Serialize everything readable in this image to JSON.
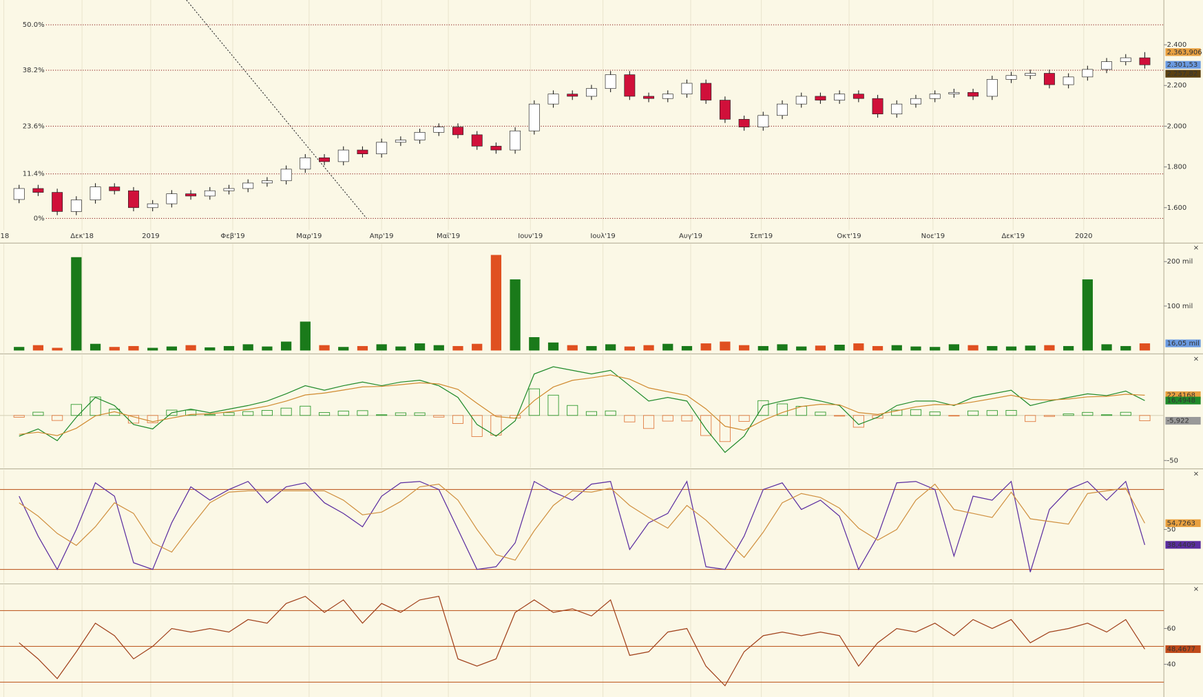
{
  "close_icon": "×",
  "chart_data": [
    {
      "type": "candlestick",
      "x": [
        1,
        2,
        3,
        4,
        5,
        6,
        7,
        8,
        9,
        10,
        11,
        12,
        13,
        14,
        15,
        16,
        17,
        18,
        19,
        20,
        21,
        22,
        23,
        24,
        25,
        26,
        27,
        28,
        29,
        30,
        31,
        32,
        33,
        34,
        35,
        36,
        37,
        38,
        39,
        40,
        41,
        42,
        43,
        44,
        45,
        46,
        47,
        48,
        49,
        50,
        51,
        52,
        53,
        54,
        55,
        56,
        57,
        58,
        59,
        60
      ],
      "open": [
        1640,
        1694,
        1675,
        1581,
        1638,
        1702,
        1683,
        1600,
        1619,
        1668,
        1657,
        1683,
        1694,
        1721,
        1732,
        1789,
        1845,
        1826,
        1883,
        1864,
        1921,
        1932,
        1970,
        1996,
        1958,
        1902,
        1883,
        1977,
        2109,
        2158,
        2147,
        2185,
        2253,
        2147,
        2136,
        2158,
        2211,
        2128,
        2034,
        1996,
        2053,
        2109,
        2147,
        2128,
        2158,
        2136,
        2060,
        2109,
        2136,
        2158,
        2166,
        2147,
        2230,
        2249,
        2260,
        2204,
        2242,
        2279,
        2317,
        2336
      ],
      "high": [
        1712,
        1712,
        1693,
        1656,
        1720,
        1720,
        1701,
        1637,
        1686,
        1686,
        1701,
        1712,
        1739,
        1750,
        1807,
        1863,
        1863,
        1901,
        1901,
        1939,
        1950,
        1988,
        2014,
        2014,
        1976,
        1920,
        1995,
        2127,
        2176,
        2176,
        2203,
        2271,
        2271,
        2165,
        2176,
        2229,
        2229,
        2146,
        2052,
        2071,
        2127,
        2165,
        2165,
        2176,
        2176,
        2154,
        2127,
        2154,
        2176,
        2184,
        2184,
        2248,
        2267,
        2278,
        2278,
        2260,
        2297,
        2335,
        2354,
        2364
      ],
      "low": [
        1622,
        1657,
        1563,
        1563,
        1620,
        1665,
        1582,
        1582,
        1601,
        1639,
        1639,
        1665,
        1676,
        1703,
        1714,
        1771,
        1808,
        1808,
        1846,
        1846,
        1903,
        1914,
        1952,
        1940,
        1884,
        1865,
        1865,
        1959,
        2091,
        2129,
        2129,
        2167,
        2129,
        2118,
        2118,
        2140,
        2110,
        2016,
        1978,
        1978,
        2035,
        2091,
        2110,
        2110,
        2118,
        2042,
        2042,
        2091,
        2118,
        2140,
        2129,
        2129,
        2212,
        2231,
        2186,
        2186,
        2224,
        2261,
        2299,
        2283
      ],
      "close": [
        1694,
        1675,
        1581,
        1638,
        1702,
        1683,
        1600,
        1619,
        1668,
        1657,
        1683,
        1694,
        1721,
        1732,
        1789,
        1845,
        1826,
        1883,
        1864,
        1921,
        1932,
        1970,
        1996,
        1958,
        1902,
        1883,
        1977,
        2109,
        2158,
        2147,
        2185,
        2253,
        2147,
        2136,
        2158,
        2211,
        2128,
        2034,
        1996,
        2053,
        2109,
        2147,
        2128,
        2158,
        2136,
        2060,
        2109,
        2136,
        2158,
        2166,
        2147,
        2230,
        2249,
        2260,
        2204,
        2242,
        2279,
        2317,
        2336,
        2301.53
      ],
      "up_color": "#ffffff",
      "down_color": "#d0103a",
      "xlim": [
        0,
        61
      ],
      "xticks": [
        {
          "value": 0.2,
          "label": "'18"
        },
        {
          "value": 4.3,
          "label": "Δεκ'18"
        },
        {
          "value": 7.9,
          "label": "2019"
        },
        {
          "value": 12.2,
          "label": "Φεβ'19"
        },
        {
          "value": 16.2,
          "label": "Μαρ'19"
        },
        {
          "value": 20.0,
          "label": "Απρ'19"
        },
        {
          "value": 23.5,
          "label": "Μαϊ'19"
        },
        {
          "value": 27.8,
          "label": "Ιουν'19"
        },
        {
          "value": 31.6,
          "label": "Ιουλ'19"
        },
        {
          "value": 36.2,
          "label": "Αυγ'19"
        },
        {
          "value": 39.9,
          "label": "Σεπ'19"
        },
        {
          "value": 44.5,
          "label": "Οκτ'19"
        },
        {
          "value": 48.9,
          "label": "Νοε'19"
        },
        {
          "value": 53.1,
          "label": "Δεκ'19"
        },
        {
          "value": 56.8,
          "label": "2020"
        }
      ],
      "ylim": [
        1490,
        2620
      ],
      "yticks": [
        {
          "value": 1600,
          "label": "1.600"
        },
        {
          "value": 1800,
          "label": "1.800"
        },
        {
          "value": 2000,
          "label": "2.000"
        },
        {
          "value": 2200,
          "label": "2.200"
        },
        {
          "value": 2400,
          "label": "2.400"
        }
      ],
      "fib_levels": [
        {
          "value": 2498,
          "label": "50.0%"
        },
        {
          "value": 2275,
          "label": "38.2%"
        },
        {
          "value": 2000,
          "label": "23.6%"
        },
        {
          "value": 1766,
          "label": "11.4%"
        },
        {
          "value": 1547,
          "label": "0%"
        }
      ],
      "last_labels": [
        {
          "value": 2363.906,
          "label": "2.363,906",
          "color": "#e8a040"
        },
        {
          "value": 2301.53,
          "label": "2.301,53",
          "color": "#6a9ae0"
        },
        {
          "value": 2257.82,
          "label": "2.257,82",
          "color": "#5a4010"
        }
      ]
    },
    {
      "type": "bar",
      "values": [
        8,
        12,
        6,
        210,
        15,
        8,
        10,
        6,
        9,
        12,
        7,
        10,
        14,
        9,
        20,
        65,
        12,
        8,
        10,
        14,
        9,
        16,
        12,
        10,
        15,
        215,
        160,
        30,
        18,
        12,
        10,
        14,
        9,
        12,
        15,
        10,
        16,
        20,
        12,
        10,
        14,
        9,
        11,
        13,
        16,
        10,
        12,
        9,
        8,
        14,
        12,
        10,
        9,
        11,
        12,
        10,
        160,
        14,
        10,
        16.05
      ],
      "up_color": "#1a7a1a",
      "down_color": "#e05020",
      "ylim": [
        -5,
        240
      ],
      "yticks": [
        {
          "value": 100,
          "label": "100 mil"
        },
        {
          "value": 200,
          "label": "200 mil"
        }
      ],
      "last_labels": [
        {
          "value": 16.05,
          "label": "16,05 mil",
          "color": "#6a9ae0"
        }
      ]
    },
    {
      "type": "macd",
      "series": [
        {
          "color": "#1f8a2a",
          "values": [
            -23,
            -15,
            -28,
            -2,
            20,
            11,
            -10,
            -15,
            3,
            7,
            3,
            7,
            11,
            16,
            24,
            33,
            28,
            33,
            37,
            33,
            37,
            39,
            33,
            20,
            -10,
            -23,
            -6,
            46,
            54,
            50,
            46,
            50,
            33,
            16,
            20,
            16,
            -15,
            -41,
            -23,
            11,
            16,
            20,
            16,
            11,
            -10,
            -2,
            11,
            16,
            16,
            11,
            20,
            24,
            28,
            11,
            16,
            20,
            24,
            22,
            27,
            16.4948
          ]
        },
        {
          "color": "#d08a30",
          "values": [
            -21,
            -18.6,
            -22.4,
            -14.2,
            -0.5,
            4.1,
            -1.5,
            -6.9,
            -2.9,
            1.1,
            1.9,
            3.9,
            6.7,
            10.4,
            15.9,
            22.7,
            24.8,
            28.1,
            31.7,
            32.2,
            34.1,
            36.1,
            34.9,
            28.9,
            13.4,
            -1.2,
            -3.1,
            16.5,
            31.5,
            38.9,
            41.7,
            45,
            40.2,
            30.5,
            26.3,
            22.2,
            7.3,
            -12,
            -16.4,
            -5.4,
            3.2,
            9.9,
            12.3,
            11.8,
            3.1,
            1.1,
            5.1,
            9.5,
            12.1,
            11.7,
            15,
            18.6,
            22.4,
            17.8,
            17.1,
            18.3,
            20.6,
            21.2,
            23.5,
            22.4168
          ]
        }
      ],
      "histogram": {
        "up_color": "#2e9a2e",
        "down_color": "#e07a40",
        "values": [
          -2,
          3.6,
          -5.6,
          12.2,
          20.5,
          6.9,
          -8.5,
          -8.1,
          5.9,
          5.9,
          1.1,
          3.1,
          4.3,
          5.6,
          8.1,
          10.3,
          3.2,
          4.9,
          5.3,
          0.8,
          2.9,
          2.9,
          -1.9,
          -8.9,
          -23.4,
          -21.8,
          -2.9,
          29.5,
          22.5,
          11.1,
          4.3,
          5,
          -7.2,
          -14.5,
          -6.3,
          -6.2,
          -22.3,
          -29,
          -6.6,
          16.4,
          12.8,
          10.1,
          3.7,
          -0.8,
          -13.1,
          -3.1,
          5.9,
          6.5,
          3.9,
          -0.7,
          5,
          5.4,
          5.6,
          -6.8,
          -1.1,
          1.7,
          3.4,
          0.8,
          3.5,
          -5.922
        ]
      },
      "ylim": [
        -58,
        67
      ],
      "yticks": [
        -50
      ],
      "last_labels": [
        {
          "value": 22.4168,
          "label": "22,4168",
          "color": "#e8a040"
        },
        {
          "value": 16.4948,
          "label": "16,4948",
          "color": "#1f8a2a"
        },
        {
          "value": -5.922,
          "label": "-5,922",
          "color": "#999999"
        }
      ]
    },
    {
      "type": "line",
      "series": [
        {
          "color": "#5a2ca0",
          "values": [
            75,
            45,
            20,
            50,
            85,
            75,
            25,
            20,
            55,
            82,
            72,
            80,
            86,
            70,
            82,
            85,
            70,
            62,
            52,
            75,
            85,
            86,
            80,
            50,
            20,
            22,
            40,
            86,
            78,
            72,
            84,
            86,
            35,
            55,
            62,
            86,
            22,
            20,
            45,
            80,
            85,
            65,
            72,
            60,
            20,
            45,
            85,
            86,
            80,
            30,
            75,
            72,
            86,
            18,
            65,
            80,
            86,
            72,
            86,
            38.4409
          ]
        },
        {
          "color": "#d09040",
          "values": [
            70,
            60,
            47,
            38,
            52,
            70,
            62,
            40,
            33,
            52,
            70,
            78,
            79,
            79,
            79,
            79,
            79,
            72,
            61,
            63,
            71,
            82,
            84,
            72,
            50,
            31,
            27,
            49,
            68,
            79,
            78,
            81,
            68,
            59,
            51,
            68,
            57,
            43,
            29,
            48,
            70,
            77,
            74,
            66,
            51,
            42,
            50,
            72,
            84,
            65,
            62,
            59,
            78,
            58,
            56,
            54,
            77,
            79,
            81,
            54.7263
          ]
        }
      ],
      "ylim": [
        10,
        94.6
      ],
      "yticks": [
        50
      ],
      "levels": [
        20,
        80
      ],
      "last_labels": [
        {
          "value": 54.7263,
          "label": "54,7263",
          "color": "#e8a040"
        },
        {
          "value": 38.4409,
          "label": "38,4409",
          "color": "#5a2ca0"
        }
      ]
    },
    {
      "type": "line",
      "series": [
        {
          "color": "#a0401a",
          "values": [
            52,
            43,
            32,
            47,
            63,
            56,
            43,
            50,
            60,
            58,
            60,
            58,
            65,
            63,
            74,
            78,
            69,
            76,
            63,
            74,
            69,
            76,
            78,
            43,
            39,
            43,
            69,
            76,
            69,
            71,
            67,
            76,
            45,
            47,
            58,
            60,
            39,
            28,
            47,
            56,
            58,
            56,
            58,
            56,
            39,
            52,
            60,
            58,
            63,
            56,
            65,
            60,
            65,
            52,
            58,
            60,
            63,
            58,
            65,
            48.4677
          ]
        }
      ],
      "ylim": [
        21.7,
        84.3
      ],
      "yticks": [
        40,
        60
      ],
      "levels": [
        30,
        50,
        70
      ],
      "last_labels": [
        {
          "value": 48.4677,
          "label": "48,4677",
          "color": "#c04a1a"
        }
      ]
    }
  ]
}
